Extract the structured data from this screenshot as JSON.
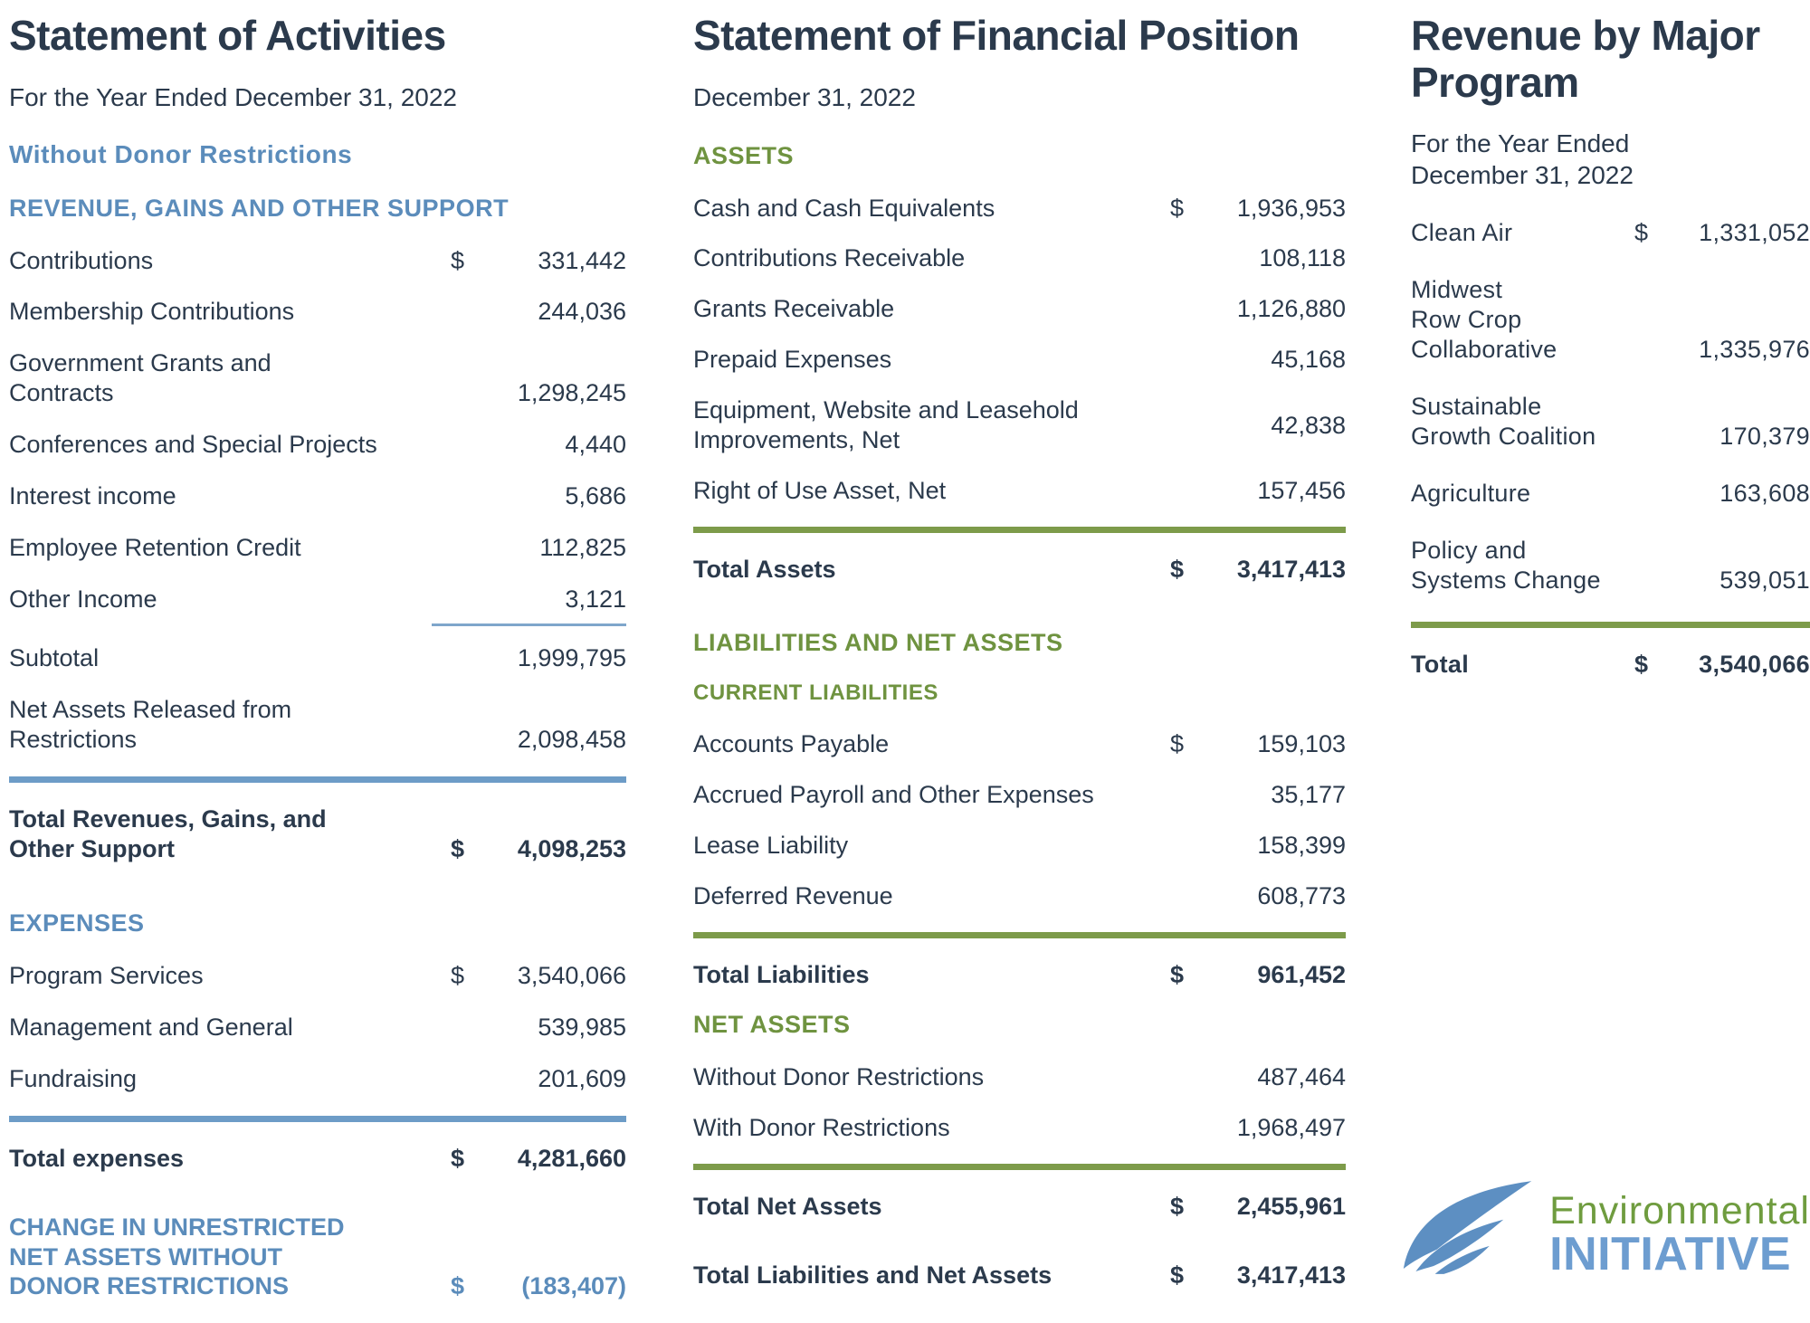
{
  "colors": {
    "navy": "#2b3a4c",
    "blue": "#5b8cbb",
    "thinblue": "#7fa6cb",
    "ruleblue": "#6d9cc7",
    "green": "#6f9340",
    "rulegreen": "#7d9b4a",
    "logo-green": "#6f9c3f",
    "logo-blue": "#6d9dd0",
    "swoosh": "#5d8fc2"
  },
  "activities": {
    "title": "Statement of Activities",
    "subtitle": "For the Year Ended December 31, 2022",
    "rows": [
      {
        "kind": "subheader",
        "text": "Without Donor Restrictions"
      },
      {
        "kind": "header",
        "text": "REVENUE, GAINS AND OTHER SUPPORT"
      },
      {
        "kind": "item",
        "label": "Contributions",
        "dollar": "$",
        "value": "331,442"
      },
      {
        "kind": "item",
        "label": "Membership Contributions",
        "value": "244,036"
      },
      {
        "kind": "item",
        "label": "Government Grants and\nContracts",
        "value": "1,298,245"
      },
      {
        "kind": "item",
        "label": "Conferences and Special Projects",
        "value": "4,440"
      },
      {
        "kind": "item",
        "label": "Interest income",
        "value": "5,686"
      },
      {
        "kind": "item",
        "label": "Employee Retention Credit",
        "value": "112,825"
      },
      {
        "kind": "item",
        "label": "Other Income",
        "value": "3,121",
        "underline": true
      },
      {
        "kind": "item",
        "label": "Subtotal",
        "value": "1,999,795"
      },
      {
        "kind": "item",
        "label": "Net Assets Released from\nRestrictions",
        "value": "2,098,458"
      },
      {
        "kind": "rule"
      },
      {
        "kind": "item",
        "label": "Total Revenues, Gains, and\nOther Support",
        "dollar": "$",
        "value": "4,098,253",
        "bold": true
      },
      {
        "kind": "spacer"
      },
      {
        "kind": "header",
        "text": "EXPENSES"
      },
      {
        "kind": "item",
        "label": "Program Services",
        "dollar": "$",
        "value": "3,540,066"
      },
      {
        "kind": "item",
        "label": "Management and General",
        "value": "539,985"
      },
      {
        "kind": "item",
        "label": "Fundraising",
        "value": "201,609"
      },
      {
        "kind": "rule"
      },
      {
        "kind": "item",
        "label": "Total expenses",
        "dollar": "$",
        "value": "4,281,660",
        "bold": true
      },
      {
        "kind": "spacer"
      },
      {
        "kind": "item",
        "label": "CHANGE IN UNRESTRICTED\nNET ASSETS WITHOUT\nDONOR RESTRICTIONS",
        "dollar": "$",
        "value": "(183,407)",
        "bold": true,
        "accent": true
      }
    ]
  },
  "position": {
    "title": "Statement of Financial Position",
    "subtitle": "December 31, 2022",
    "rows": [
      {
        "kind": "header",
        "text": "ASSETS"
      },
      {
        "kind": "item",
        "label": "Cash and Cash Equivalents",
        "dollar": "$",
        "value": "1,936,953"
      },
      {
        "kind": "item",
        "label": "Contributions Receivable",
        "value": "108,118"
      },
      {
        "kind": "item",
        "label": "Grants Receivable",
        "value": "1,126,880"
      },
      {
        "kind": "item",
        "label": "Prepaid Expenses",
        "value": "45,168"
      },
      {
        "kind": "item",
        "label": "Equipment, Website and Leasehold\nImprovements, Net",
        "value": "42,838",
        "vc": true
      },
      {
        "kind": "item",
        "label": "Right of Use Asset, Net",
        "value": "157,456"
      },
      {
        "kind": "rule"
      },
      {
        "kind": "item",
        "label": "Total Assets",
        "dollar": "$",
        "value": "3,417,413",
        "bold": true
      },
      {
        "kind": "spacer"
      },
      {
        "kind": "header",
        "text": "LIABILITIES AND NET ASSETS"
      },
      {
        "kind": "header",
        "text": "CURRENT LIABILITIES",
        "small": true
      },
      {
        "kind": "item",
        "label": "Accounts Payable",
        "dollar": "$",
        "value": "159,103"
      },
      {
        "kind": "item",
        "label": "Accrued Payroll and Other Expenses",
        "value": "35,177"
      },
      {
        "kind": "item",
        "label": "Lease Liability",
        "value": "158,399"
      },
      {
        "kind": "item",
        "label": "Deferred Revenue",
        "value": "608,773"
      },
      {
        "kind": "rule"
      },
      {
        "kind": "item",
        "label": "Total Liabilities",
        "dollar": "$",
        "value": "961,452",
        "bold": true
      },
      {
        "kind": "header",
        "text": "NET ASSETS"
      },
      {
        "kind": "item",
        "label": "Without Donor Restrictions",
        "value": "487,464"
      },
      {
        "kind": "item",
        "label": "With Donor Restrictions",
        "value": "1,968,497"
      },
      {
        "kind": "rule"
      },
      {
        "kind": "item",
        "label": "Total Net Assets",
        "dollar": "$",
        "value": "2,455,961",
        "bold": true
      },
      {
        "kind": "spacer"
      },
      {
        "kind": "item",
        "label": "Total Liabilities and Net Assets",
        "dollar": "$",
        "value": "3,417,413",
        "bold": true
      }
    ]
  },
  "revenue": {
    "title": "Revenue by Major\nProgram",
    "subtitle": "For the Year Ended\nDecember 31, 2022",
    "rows": [
      {
        "kind": "item",
        "label": "Clean Air",
        "dollar": "$",
        "value": "1,331,052"
      },
      {
        "kind": "item",
        "label": "Midwest\nRow Crop\nCollaborative",
        "value": "1,335,976"
      },
      {
        "kind": "item",
        "label": "Sustainable\nGrowth Coalition",
        "value": "170,379"
      },
      {
        "kind": "item",
        "label": "Agriculture",
        "value": "163,608"
      },
      {
        "kind": "item",
        "label": "Policy and\nSystems Change",
        "value": "539,051"
      },
      {
        "kind": "rule"
      },
      {
        "kind": "item",
        "label": "Total",
        "dollar": "$",
        "value": "3,540,066",
        "bold": true
      }
    ]
  },
  "logo": {
    "line1": "Environmental",
    "line2": "INITIATIVE"
  }
}
